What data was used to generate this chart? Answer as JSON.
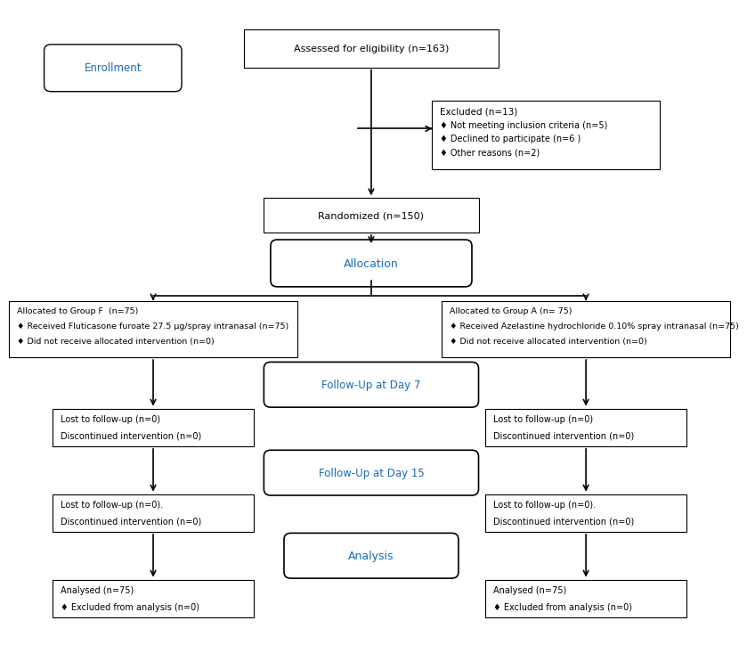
{
  "enrollment_label": "Enrollment",
  "allocation_label": "Allocation",
  "followup7_label": "Follow-Up at Day 7",
  "followup15_label": "Follow-Up at Day 15",
  "analysis_label": "Analysis",
  "box_assessed": "Assessed for eligibility (n=163)",
  "box_excluded_title": "Excluded (n=13)",
  "box_excluded_lines": [
    "♦ Not meeting inclusion criteria (n=5)",
    "♦ Declined to participate (n=6 )",
    "♦ Other reasons (n=2)"
  ],
  "box_randomized": "Randomized (n=150)",
  "box_group_f_lines": [
    "Allocated to Group F  (n=75)",
    "♦ Received Fluticasone furoate 27.5 μg/spray intranasal (n=75)",
    "♦ Did not receive allocated intervention (n=0)"
  ],
  "box_group_a_lines": [
    "Allocated to Group A (n= 75)",
    "♦ Received Azelastine hydrochloride 0.10% spray intranasal (n=75)",
    "♦ Did not receive allocated intervention (n=0)"
  ],
  "box_lost7_f_lines": [
    "Lost to follow-up (n=0)",
    "Discontinued intervention (n=0)"
  ],
  "box_lost7_a_lines": [
    "Lost to follow-up (n=0)",
    "Discontinued intervention (n=0)"
  ],
  "box_lost15_f_lines": [
    "Lost to follow-up (n=0).",
    "Discontinued intervention (n=0)"
  ],
  "box_lost15_a_lines": [
    "Lost to follow-up (n=0).",
    "Discontinued intervention (n=0)"
  ],
  "box_analysed_f_lines": [
    "Analysed (n=75)",
    "♦ Excluded from analysis (n=0)"
  ],
  "box_analysed_a_lines": [
    "Analysed (n=75)",
    "♦ Excluded from analysis (n=0)"
  ],
  "blue_color": "#1a6ab5",
  "black_color": "#000000",
  "bg_color": "#ffffff"
}
